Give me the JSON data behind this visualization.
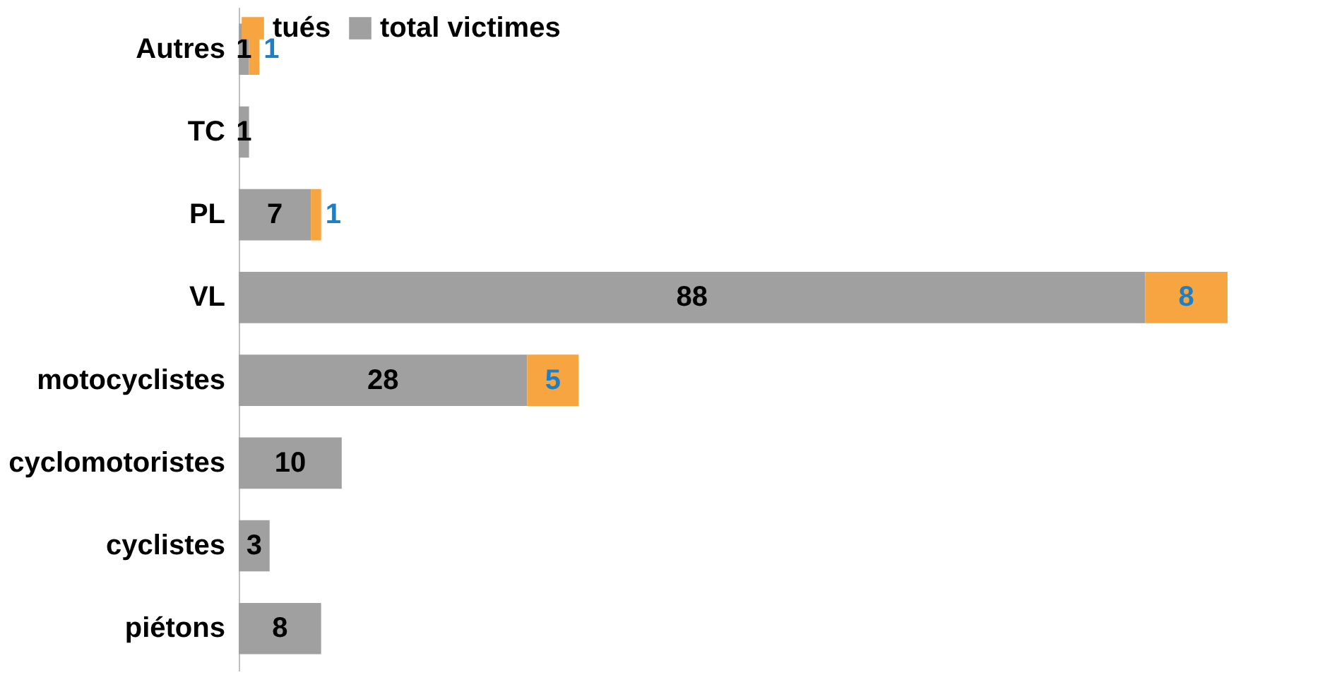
{
  "chart_data": {
    "type": "bar",
    "orientation": "horizontal",
    "stacked": true,
    "data_labels": true,
    "legend": "top",
    "grid": false,
    "categories": [
      "Autres",
      "TC",
      "PL",
      "VL",
      "motocyclistes",
      "cyclomotoristes",
      "cyclistes",
      "piétons"
    ],
    "series": [
      {
        "name": "total victimes",
        "color": "#a0a0a0",
        "values": [
          1,
          1,
          7,
          88,
          28,
          10,
          3,
          8
        ]
      },
      {
        "name": "tués",
        "color": "#f7a541",
        "values": [
          1,
          null,
          1,
          8,
          5,
          null,
          null,
          null
        ]
      }
    ]
  }
}
